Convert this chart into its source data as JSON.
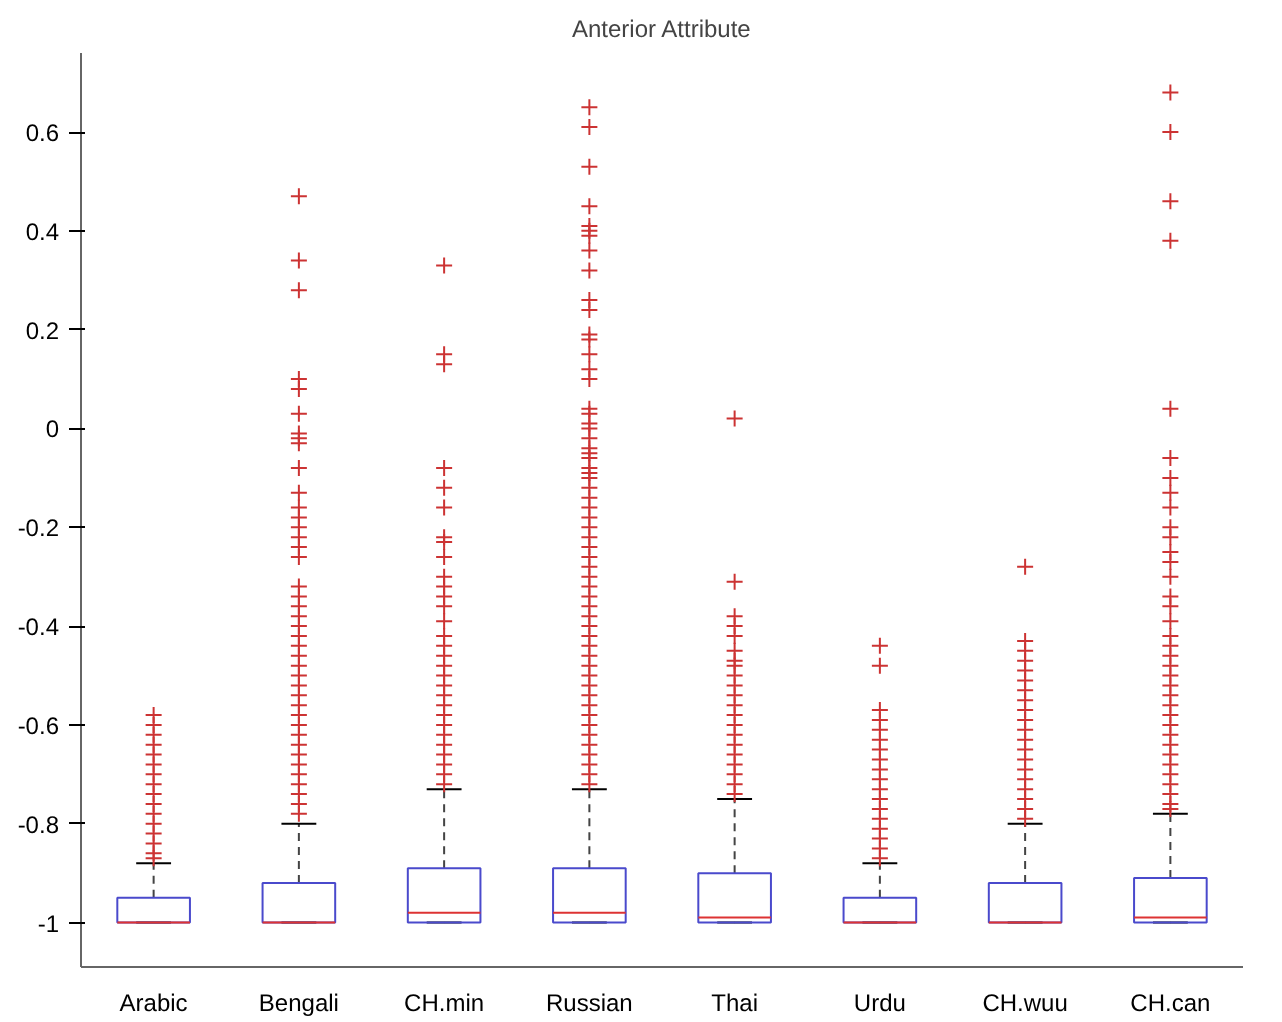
{
  "chart_data": {
    "type": "box",
    "title": "Anterior Attribute",
    "categories": [
      "Arabic",
      "Bengali",
      "CH.min",
      "Russian",
      "Thai",
      "Urdu",
      "CH.wuu",
      "CH.can"
    ],
    "ylim": [
      -1.09,
      0.76
    ],
    "yticks": [
      -1,
      -0.8,
      -0.6,
      -0.4,
      -0.2,
      0,
      0.2,
      0.4,
      0.6
    ],
    "grid": false,
    "marker": "cross",
    "series": [
      {
        "color": "#4a4acc",
        "boxes": [
          {
            "low": -1,
            "q1": -1,
            "median": -1,
            "q3": -0.95,
            "high": -0.88,
            "outliers": [
              -0.58,
              -0.6,
              -0.62,
              -0.64,
              -0.66,
              -0.68,
              -0.7,
              -0.72,
              -0.74,
              -0.76,
              -0.78,
              -0.8,
              -0.82,
              -0.84,
              -0.86,
              -0.87
            ]
          },
          {
            "low": -1,
            "q1": -1,
            "median": -1,
            "q3": -0.92,
            "high": -0.8,
            "outliers": [
              0.47,
              0.34,
              0.28,
              0.1,
              0.08,
              0.03,
              -0.01,
              -0.02,
              -0.03,
              -0.08,
              -0.13,
              -0.16,
              -0.18,
              -0.2,
              -0.22,
              -0.24,
              -0.26,
              -0.32,
              -0.34,
              -0.36,
              -0.38,
              -0.4,
              -0.42,
              -0.44,
              -0.46,
              -0.48,
              -0.5,
              -0.52,
              -0.54,
              -0.56,
              -0.58,
              -0.6,
              -0.62,
              -0.64,
              -0.66,
              -0.68,
              -0.7,
              -0.72,
              -0.74,
              -0.76,
              -0.78
            ]
          },
          {
            "low": -1,
            "q1": -1,
            "median": -0.98,
            "q3": -0.89,
            "high": -0.73,
            "outliers": [
              0.33,
              0.15,
              0.13,
              -0.08,
              -0.12,
              -0.16,
              -0.22,
              -0.23,
              -0.26,
              -0.3,
              -0.32,
              -0.34,
              -0.36,
              -0.39,
              -0.42,
              -0.44,
              -0.46,
              -0.48,
              -0.5,
              -0.52,
              -0.54,
              -0.56,
              -0.58,
              -0.6,
              -0.62,
              -0.64,
              -0.66,
              -0.68,
              -0.7,
              -0.72
            ]
          },
          {
            "low": -1,
            "q1": -1,
            "median": -0.98,
            "q3": -0.89,
            "high": -0.73,
            "outliers": [
              0.65,
              0.61,
              0.53,
              0.45,
              0.41,
              0.4,
              0.39,
              0.36,
              0.32,
              0.26,
              0.24,
              0.19,
              0.18,
              0.15,
              0.12,
              0.1,
              0.04,
              0.03,
              0.01,
              0.0,
              -0.02,
              -0.04,
              -0.05,
              -0.06,
              -0.08,
              -0.09,
              -0.1,
              -0.12,
              -0.14,
              -0.16,
              -0.18,
              -0.2,
              -0.22,
              -0.24,
              -0.26,
              -0.28,
              -0.3,
              -0.32,
              -0.34,
              -0.36,
              -0.38,
              -0.4,
              -0.42,
              -0.44,
              -0.46,
              -0.48,
              -0.5,
              -0.52,
              -0.54,
              -0.56,
              -0.58,
              -0.6,
              -0.62,
              -0.64,
              -0.66,
              -0.68,
              -0.7,
              -0.72
            ]
          },
          {
            "low": -1,
            "q1": -1,
            "median": -0.99,
            "q3": -0.9,
            "high": -0.75,
            "outliers": [
              0.02,
              -0.31,
              -0.38,
              -0.4,
              -0.42,
              -0.45,
              -0.47,
              -0.48,
              -0.5,
              -0.52,
              -0.54,
              -0.56,
              -0.58,
              -0.6,
              -0.62,
              -0.64,
              -0.66,
              -0.68,
              -0.7,
              -0.72,
              -0.74
            ]
          },
          {
            "low": -1,
            "q1": -1,
            "median": -1,
            "q3": -0.95,
            "high": -0.88,
            "outliers": [
              -0.44,
              -0.48,
              -0.57,
              -0.59,
              -0.61,
              -0.63,
              -0.65,
              -0.67,
              -0.69,
              -0.71,
              -0.73,
              -0.75,
              -0.77,
              -0.79,
              -0.81,
              -0.83,
              -0.85,
              -0.87
            ]
          },
          {
            "low": -1,
            "q1": -1,
            "median": -1,
            "q3": -0.92,
            "high": -0.8,
            "outliers": [
              -0.28,
              -0.43,
              -0.45,
              -0.47,
              -0.49,
              -0.51,
              -0.53,
              -0.55,
              -0.57,
              -0.59,
              -0.61,
              -0.63,
              -0.65,
              -0.67,
              -0.69,
              -0.71,
              -0.73,
              -0.75,
              -0.77,
              -0.79
            ]
          },
          {
            "low": -1,
            "q1": -1,
            "median": -0.99,
            "q3": -0.91,
            "high": -0.78,
            "outliers": [
              0.68,
              0.6,
              0.46,
              0.38,
              0.04,
              -0.06,
              -0.1,
              -0.13,
              -0.16,
              -0.2,
              -0.22,
              -0.25,
              -0.27,
              -0.3,
              -0.34,
              -0.36,
              -0.39,
              -0.42,
              -0.44,
              -0.46,
              -0.48,
              -0.5,
              -0.52,
              -0.54,
              -0.56,
              -0.58,
              -0.6,
              -0.62,
              -0.64,
              -0.66,
              -0.68,
              -0.7,
              -0.72,
              -0.74,
              -0.76,
              -0.77
            ]
          }
        ]
      }
    ]
  }
}
